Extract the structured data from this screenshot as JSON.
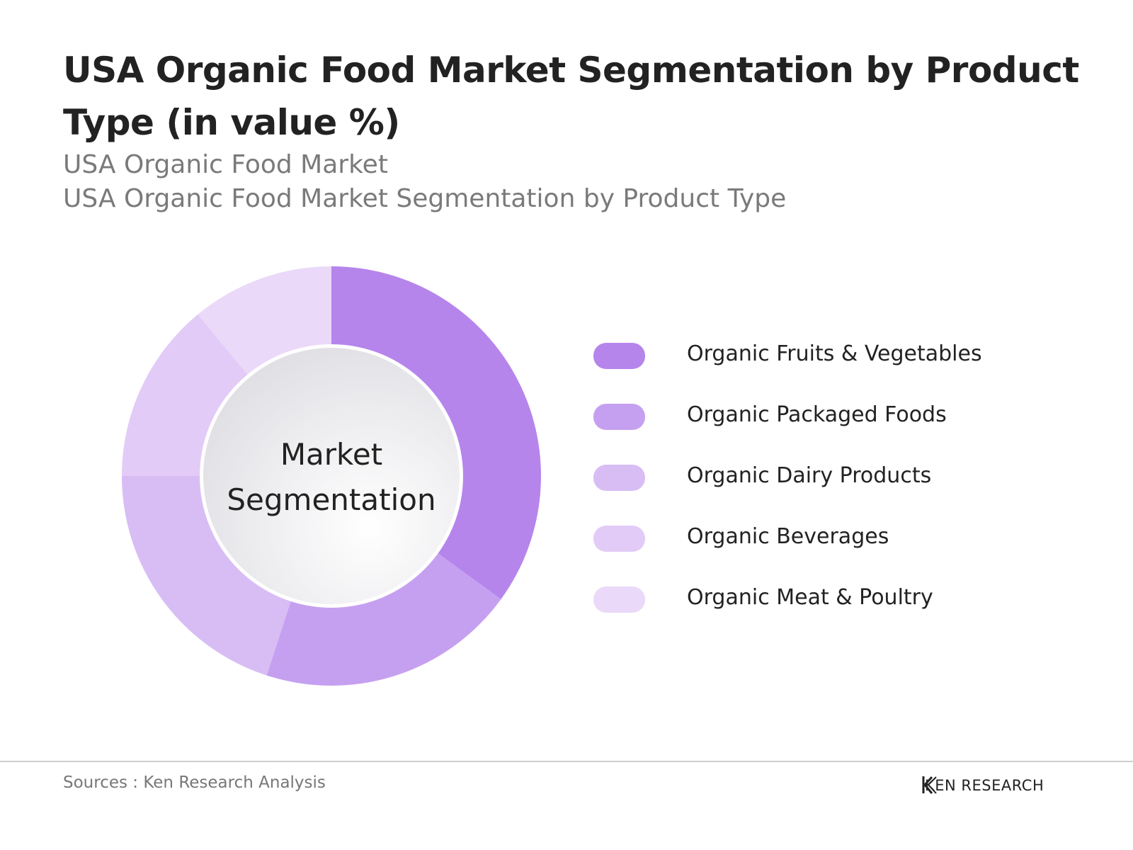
{
  "header": {
    "title": "USA Organic Food Market Segmentation by Product Type (in value %)",
    "subtitle_1": "USA Organic Food Market",
    "subtitle_2": "USA Organic Food Market Segmentation by Product Type"
  },
  "chart_data": {
    "type": "pie",
    "variant": "donut",
    "center_label": [
      "Market",
      "Segmentation"
    ],
    "categories": [
      "Organic Fruits & Vegetables",
      "Organic Packaged Foods",
      "Organic Dairy Products",
      "Organic Beverages",
      "Organic Meat & Poultry"
    ],
    "values": [
      35,
      20,
      20,
      14,
      11
    ],
    "colors": [
      "#b585ec",
      "#c6a0f0",
      "#d8bdf5",
      "#e2cbf7",
      "#ead9f8"
    ],
    "legend_position": "right"
  },
  "footer": {
    "source": "Sources : Ken Research Analysis",
    "logo_text": "KEN RESEARCH",
    "logo_icon": "ken-research-logo-icon"
  }
}
